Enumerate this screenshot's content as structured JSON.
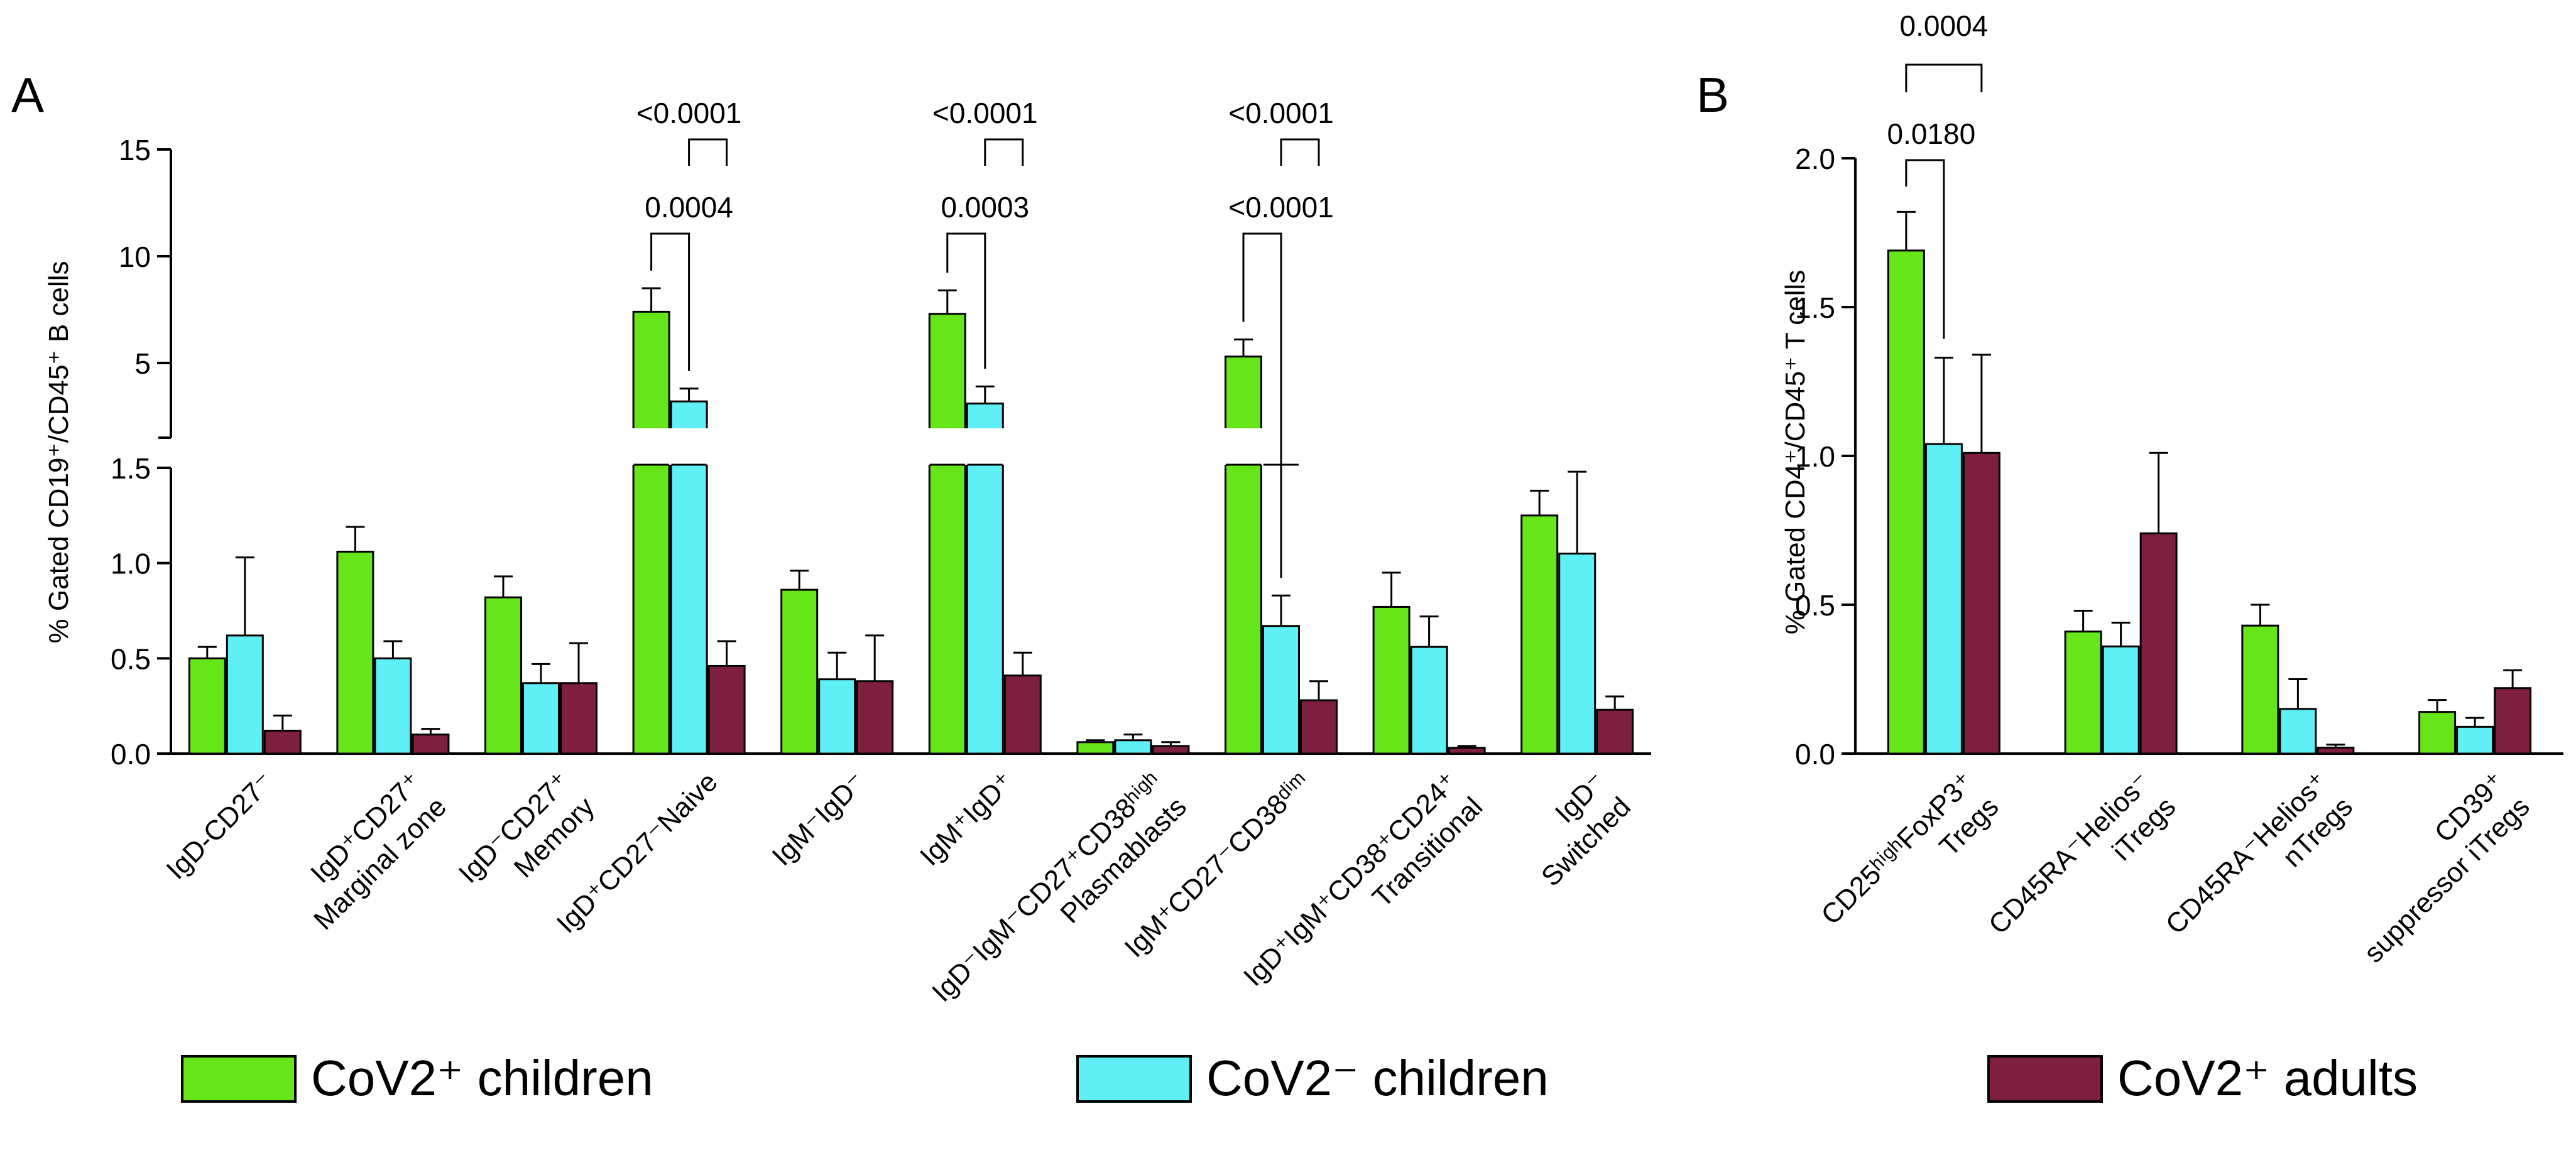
{
  "chart_data": [
    {
      "panel_label": "A",
      "type": "bar",
      "ylabel": "% Gated CD19⁺/CD45⁺ B cells",
      "y_axis_lower": {
        "range": [
          0,
          1.5
        ],
        "ticks": [
          "0.0",
          "0.5",
          "1.0",
          "1.5"
        ]
      },
      "y_axis_upper": {
        "range": [
          1.5,
          15
        ],
        "ticks": [
          "5",
          "10",
          "15"
        ]
      },
      "categories": [
        "IgD-CD27⁻",
        "IgD⁺CD27⁺ Marginal zone",
        "IgD⁻CD27⁺ Memory",
        "IgD⁺CD27⁻Naive",
        "IgM⁻IgD⁻",
        "IgM⁺IgD⁺",
        "IgD⁻IgM⁻CD27⁺CD38ʰⁱᵍʰ Plasmablasts",
        "IgM⁺CD27⁻CD38ᵈⁱᵐ",
        "IgD⁺IgM⁺CD38⁺CD24⁺ Transitional",
        "IgD⁻ Switched"
      ],
      "series": [
        {
          "name": "CoV2⁺ children",
          "color": "#66e619",
          "values": [
            0.5,
            1.06,
            0.82,
            7.4,
            0.86,
            7.3,
            0.06,
            5.3,
            0.77,
            1.25
          ],
          "errors": [
            0.06,
            0.13,
            0.11,
            1.1,
            0.1,
            1.1,
            0.01,
            0.8,
            0.18,
            0.13
          ]
        },
        {
          "name": "CoV2⁻ children",
          "color": "#5ff0f5",
          "values": [
            0.62,
            0.5,
            0.37,
            3.2,
            0.39,
            3.1,
            0.07,
            0.67,
            0.56,
            1.05
          ],
          "errors": [
            0.41,
            0.09,
            0.1,
            0.6,
            0.14,
            0.8,
            0.03,
            0.16,
            0.16,
            0.43
          ]
        },
        {
          "name": "CoV2⁺ adults",
          "color": "#7f1f3f",
          "values": [
            0.12,
            0.1,
            0.37,
            0.46,
            0.38,
            0.41,
            0.04,
            0.28,
            0.03,
            0.23
          ],
          "errors": [
            0.08,
            0.03,
            0.21,
            0.13,
            0.24,
            0.12,
            0.02,
            0.1,
            0.01,
            0.07
          ]
        }
      ],
      "comparisons": [
        {
          "category": 3,
          "pairs": [
            {
              "from": 0,
              "to": 1,
              "label": "0.0004"
            },
            {
              "from": 1,
              "to": 2,
              "label": "<0.0001"
            }
          ]
        },
        {
          "category": 5,
          "pairs": [
            {
              "from": 0,
              "to": 1,
              "label": "0.0003"
            },
            {
              "from": 1,
              "to": 2,
              "label": "<0.0001"
            }
          ]
        },
        {
          "category": 7,
          "pairs": [
            {
              "from": 0,
              "to": 1,
              "label": "<0.0001"
            },
            {
              "from": 1,
              "to": 2,
              "label": "<0.0001"
            }
          ]
        }
      ]
    },
    {
      "panel_label": "B",
      "type": "bar",
      "ylabel": "% Gated CD4⁺/CD45⁺ T cells",
      "ylim": [
        0,
        2.0
      ],
      "ticks": [
        "0.0",
        "0.5",
        "1.0",
        "1.5",
        "2.0"
      ],
      "categories": [
        "CD25ʰⁱᵍʰFoxP3⁺ Tregs",
        "CD45RA⁻Helios⁻ iTregs",
        "CD45RA⁻Helios⁺ nTregs",
        "CD39⁺ suppressor iTregs"
      ],
      "series": [
        {
          "name": "CoV2⁺ children",
          "color": "#66e619",
          "values": [
            1.69,
            0.41,
            0.43,
            0.14
          ],
          "errors": [
            0.13,
            0.07,
            0.07,
            0.04
          ]
        },
        {
          "name": "CoV2⁻ children",
          "color": "#5ff0f5",
          "values": [
            1.04,
            0.36,
            0.15,
            0.09
          ],
          "errors": [
            0.29,
            0.08,
            0.1,
            0.03
          ]
        },
        {
          "name": "CoV2⁺ adults",
          "color": "#7f1f3f",
          "values": [
            1.01,
            0.74,
            0.02,
            0.22
          ],
          "errors": [
            0.33,
            0.27,
            0.01,
            0.06
          ]
        }
      ],
      "comparisons": [
        {
          "category": 0,
          "pairs": [
            {
              "from": 0,
              "to": 1,
              "label": "0.0180"
            },
            {
              "from": 0,
              "to": 2,
              "label": "0.0004"
            }
          ]
        }
      ]
    }
  ],
  "legend": [
    {
      "label": "CoV2⁺  children",
      "color": "#66e619"
    },
    {
      "label": "CoV2⁻  children",
      "color": "#5ff0f5"
    },
    {
      "label": "CoV2⁺  adults",
      "color": "#7f1f3f"
    }
  ]
}
